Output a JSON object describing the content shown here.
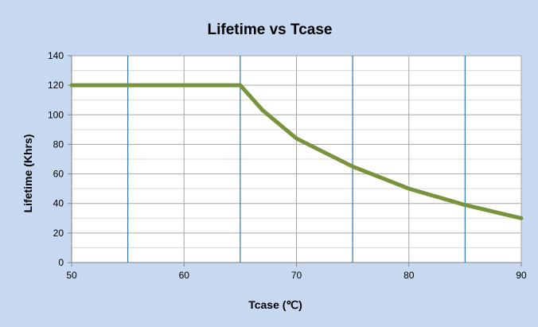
{
  "chart_data": {
    "type": "line",
    "title": "Lifetime vs Tcase",
    "xlabel": "Tcase (℃)",
    "ylabel": "Lifetime (Khrs)",
    "xlim": [
      50,
      90
    ],
    "ylim": [
      0,
      140
    ],
    "x_ticks": [
      50,
      60,
      70,
      80,
      90
    ],
    "y_ticks": [
      0,
      20,
      40,
      60,
      80,
      100,
      120,
      140
    ],
    "x_minor_gridlines": [
      55,
      65,
      75,
      85
    ],
    "grid": true,
    "legend": "none",
    "series": [
      {
        "x": [
          50,
          55,
          60,
          65,
          67,
          70,
          75,
          80,
          85,
          90
        ],
        "y": [
          120,
          120,
          120,
          120,
          103,
          84,
          65,
          50,
          39,
          30
        ]
      }
    ],
    "colors": {
      "background": "#c6d9f1",
      "plot_area": "#ffffff",
      "line": "#77933c",
      "major_grid": "#a6a6a6",
      "minor_grid": "#d9d9d9",
      "vertical_grid": "#2e75b6"
    }
  }
}
